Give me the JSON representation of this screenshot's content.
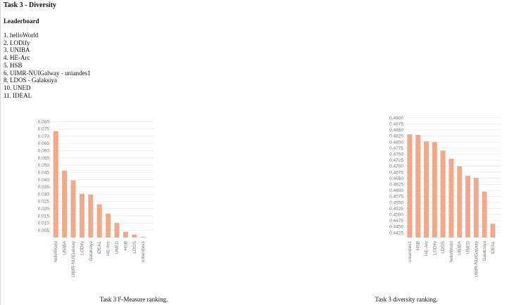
{
  "page": {
    "title": "Task 3 - Diversity",
    "leaderboard_title": "Leaderboard",
    "leaderboard": [
      "1. helloWorld",
      "2. LODify",
      "3. UNIBA",
      "4. HE-Arc",
      "5. HSB",
      "6. UIMR-NUIGalway - uniandes1",
      "8. LDOS - Galaksiya",
      "10. UNED",
      "11. IDEAL"
    ]
  },
  "charts": {
    "fmeasure": {
      "caption": "Task 3 F-Measure ranking."
    },
    "diversity": {
      "caption": "Task 3 diversity ranking."
    }
  },
  "chart_data": [
    {
      "type": "bar",
      "categories": [
        "helloWorld",
        "UNIBA",
        "UIMR-NUIGalway",
        "LODify",
        "Galaksiya",
        "IDEAL",
        "HE-Arc",
        "UNED",
        "HSB",
        "LDOS",
        "uniandes1"
      ],
      "values": [
        0.0735,
        0.0462,
        0.0395,
        0.0302,
        0.0297,
        0.023,
        0.0165,
        0.01,
        0.004,
        0.002,
        0.0005
      ],
      "ylim": [
        0,
        0.082
      ],
      "yticks": [
        0.005,
        0.01,
        0.015,
        0.02,
        0.025,
        0.03,
        0.035,
        0.04,
        0.045,
        0.05,
        0.055,
        0.06,
        0.065,
        0.07,
        0.075,
        0.08
      ],
      "yticklabels": [
        "0.005",
        "0.010",
        "0.015",
        "0.020",
        "0.025",
        "0.030",
        "0.035",
        "0.040",
        "0.045",
        "0.050",
        "0.055",
        "0.060",
        "0.065",
        "0.070",
        "0.075",
        "0.080"
      ],
      "grid": true,
      "legend": "none",
      "bar_color": "#f2a98a"
    },
    {
      "type": "bar",
      "categories": [
        "uniandes1",
        "HSB",
        "HE-Arc",
        "LODify",
        "LDOS",
        "helloWorld",
        "UNIBA",
        "UNED",
        "UIMR-NUIGalway",
        "Galaksiya",
        "IDEAL"
      ],
      "values": [
        0.4832,
        0.483,
        0.4803,
        0.48,
        0.4765,
        0.4731,
        0.47,
        0.466,
        0.4652,
        0.4595,
        0.4462
      ],
      "ylim": [
        0.4405,
        0.4905
      ],
      "yticks": [
        0.4425,
        0.445,
        0.4475,
        0.45,
        0.4525,
        0.455,
        0.4575,
        0.46,
        0.4625,
        0.465,
        0.4675,
        0.47,
        0.4725,
        0.475,
        0.4775,
        0.48,
        0.4825,
        0.485,
        0.4875,
        0.49
      ],
      "yticklabels": [
        "0.4425",
        "0.4450",
        "0.4475",
        "0.4500",
        "0.4525",
        "0.4550",
        "0.4575",
        "0.4600",
        "0.4625",
        "0.4650",
        "0.4675",
        "0.4700",
        "0.4725",
        "0.4750",
        "0.4775",
        "0.4800",
        "0.4825",
        "0.4850",
        "0.4875",
        "0.4900"
      ],
      "grid": true,
      "legend": "none",
      "bar_color": "#f2a98a"
    }
  ]
}
